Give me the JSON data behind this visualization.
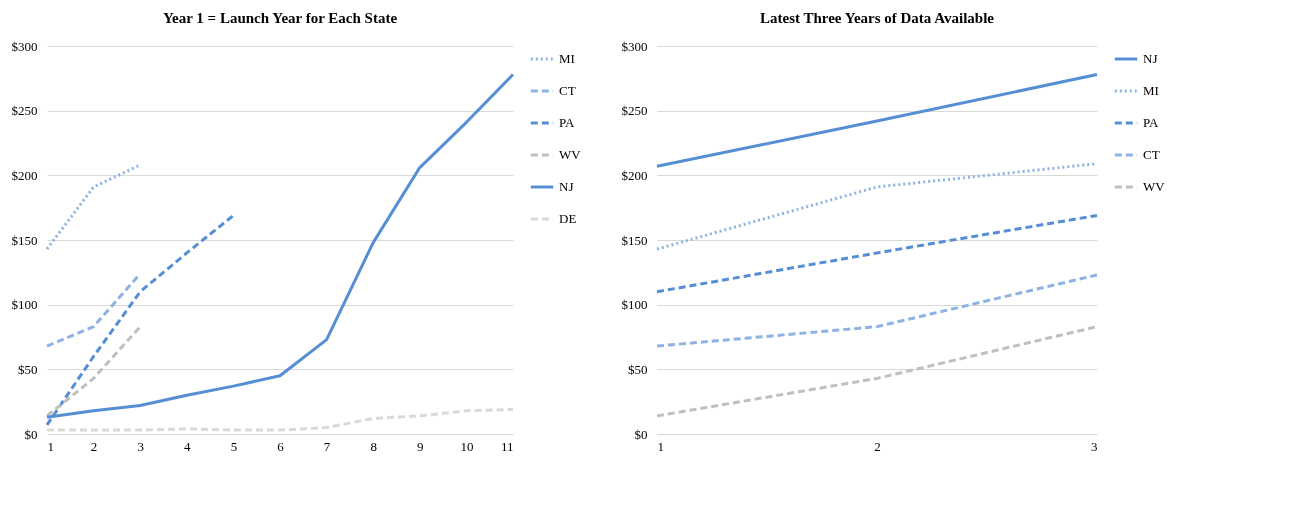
{
  "chart_data": [
    {
      "type": "line",
      "title": "Year 1 = Launch Year for Each State",
      "x": [
        1,
        2,
        3,
        4,
        5,
        6,
        7,
        8,
        9,
        10,
        11
      ],
      "xlim": [
        1,
        11
      ],
      "xticks": [
        1,
        2,
        3,
        4,
        5,
        6,
        7,
        8,
        9,
        10,
        11
      ],
      "ylim": [
        0,
        300
      ],
      "yticks": [
        {
          "value": 0,
          "label": "$0"
        },
        {
          "value": 50,
          "label": "$50"
        },
        {
          "value": 100,
          "label": "$100"
        },
        {
          "value": 150,
          "label": "$150"
        },
        {
          "value": 200,
          "label": "$200"
        },
        {
          "value": 250,
          "label": "$250"
        },
        {
          "value": 300,
          "label": "$300"
        }
      ],
      "grid": "y",
      "legend": "right",
      "series": [
        {
          "name": "MI",
          "color": "#8db3e2",
          "line_style": "dotted",
          "values": [
            143,
            191,
            208,
            null,
            null,
            null,
            null,
            null,
            null,
            null,
            null
          ]
        },
        {
          "name": "CT",
          "color": "#8db3e2",
          "line_style": "dashed",
          "values": [
            68,
            83,
            124,
            null,
            null,
            null,
            null,
            null,
            null,
            null,
            null
          ]
        },
        {
          "name": "PA",
          "color": "#558ed5",
          "line_style": "dashed",
          "values": [
            7,
            60,
            110,
            140,
            169,
            null,
            null,
            null,
            null,
            null,
            null
          ]
        },
        {
          "name": "WV",
          "color": "#bfbfbf",
          "line_style": "dashed",
          "values": [
            14,
            43,
            83,
            null,
            null,
            null,
            null,
            null,
            null,
            null,
            null
          ]
        },
        {
          "name": "NJ",
          "color": "#558ed5",
          "line_style": "solid",
          "values": [
            13,
            18,
            22,
            30,
            37,
            45,
            73,
            148,
            206,
            241,
            278
          ]
        },
        {
          "name": "DE",
          "color": "#d9d9d9",
          "line_style": "dashed",
          "values": [
            3,
            3,
            3,
            4,
            3,
            3,
            5,
            12,
            14,
            18,
            19
          ]
        }
      ]
    },
    {
      "type": "line",
      "title": "Latest Three Years of Data Available",
      "x": [
        1,
        2,
        3
      ],
      "xlim": [
        1,
        3
      ],
      "xticks": [
        1,
        2,
        3
      ],
      "ylim": [
        0,
        300
      ],
      "yticks": [
        {
          "value": 0,
          "label": "$0"
        },
        {
          "value": 50,
          "label": "$50"
        },
        {
          "value": 100,
          "label": "$100"
        },
        {
          "value": 150,
          "label": "$150"
        },
        {
          "value": 200,
          "label": "$200"
        },
        {
          "value": 250,
          "label": "$250"
        },
        {
          "value": 300,
          "label": "$300"
        }
      ],
      "grid": "y",
      "legend": "right",
      "series": [
        {
          "name": "NJ",
          "color": "#558ed5",
          "line_style": "solid",
          "values": [
            207,
            242,
            278
          ]
        },
        {
          "name": "MI",
          "color": "#8db3e2",
          "line_style": "dotted",
          "values": [
            143,
            191,
            209
          ]
        },
        {
          "name": "PA",
          "color": "#558ed5",
          "line_style": "dashed",
          "values": [
            110,
            140,
            169
          ]
        },
        {
          "name": "CT",
          "color": "#8db3e2",
          "line_style": "dashed",
          "values": [
            68,
            83,
            123
          ]
        },
        {
          "name": "WV",
          "color": "#bfbfbf",
          "line_style": "dashed",
          "values": [
            14,
            43,
            83
          ]
        }
      ]
    }
  ]
}
